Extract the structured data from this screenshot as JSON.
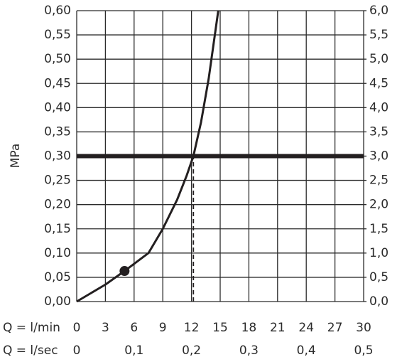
{
  "chart_data": {
    "type": "line",
    "ylabel": "MPa",
    "xlabel": "Q = l/min",
    "x2label": "Q = l/sec",
    "x": [
      0,
      3,
      5,
      7.5,
      9,
      10.5,
      11.5,
      12.2,
      13,
      13.8,
      14.8
    ],
    "values": [
      0,
      0.035,
      0.063,
      0.1,
      0.15,
      0.21,
      0.26,
      0.3,
      0.37,
      0.46,
      0.6
    ],
    "color": "#231f20",
    "marker": {
      "x": 5,
      "y": 0.063
    },
    "hline": 0.3,
    "vline": 12.2,
    "grid": true,
    "xlim": [
      0,
      30
    ],
    "xticks": [
      0,
      3,
      6,
      9,
      12,
      15,
      18,
      21,
      24,
      27,
      30
    ],
    "x2lim": [
      0,
      0.5
    ],
    "x2ticks": [
      0,
      {
        "value": 0.1,
        "label": "0,1"
      },
      {
        "value": 0.2,
        "label": "0,2"
      },
      {
        "value": 0.3,
        "label": "0,3"
      },
      {
        "value": 0.4,
        "label": "0,4"
      },
      {
        "value": 0.5,
        "label": "0,5"
      }
    ],
    "ylim": [
      0,
      0.6
    ],
    "yticks": [
      {
        "value": 0,
        "label": "0,00"
      },
      {
        "value": 0.05,
        "label": "0,05"
      },
      {
        "value": 0.1,
        "label": "0,10"
      },
      {
        "value": 0.15,
        "label": "0,15"
      },
      {
        "value": 0.2,
        "label": "0,20"
      },
      {
        "value": 0.25,
        "label": "0,25"
      },
      {
        "value": 0.3,
        "label": "0,30"
      },
      {
        "value": 0.35,
        "label": "0,35"
      },
      {
        "value": 0.4,
        "label": "0,40"
      },
      {
        "value": 0.45,
        "label": "0,45"
      },
      {
        "value": 0.5,
        "label": "0,50"
      },
      {
        "value": 0.55,
        "label": "0,55"
      },
      {
        "value": 0.6,
        "label": "0,60"
      }
    ],
    "y2lim": [
      0,
      6
    ],
    "y2ticks": [
      {
        "value": 0,
        "label": "0,0"
      },
      {
        "value": 0.5,
        "label": "0,5"
      },
      {
        "value": 1,
        "label": "1,0"
      },
      {
        "value": 1.5,
        "label": "1,5"
      },
      {
        "value": 2,
        "label": "2,0"
      },
      {
        "value": 2.5,
        "label": "2,5"
      },
      {
        "value": 3,
        "label": "3,0"
      },
      {
        "value": 3.5,
        "label": "3,5"
      },
      {
        "value": 4,
        "label": "4,0"
      },
      {
        "value": 4.5,
        "label": "4,5"
      },
      {
        "value": 5,
        "label": "5,0"
      },
      {
        "value": 5.5,
        "label": "5,5"
      },
      {
        "value": 6,
        "label": "6,0"
      }
    ]
  }
}
